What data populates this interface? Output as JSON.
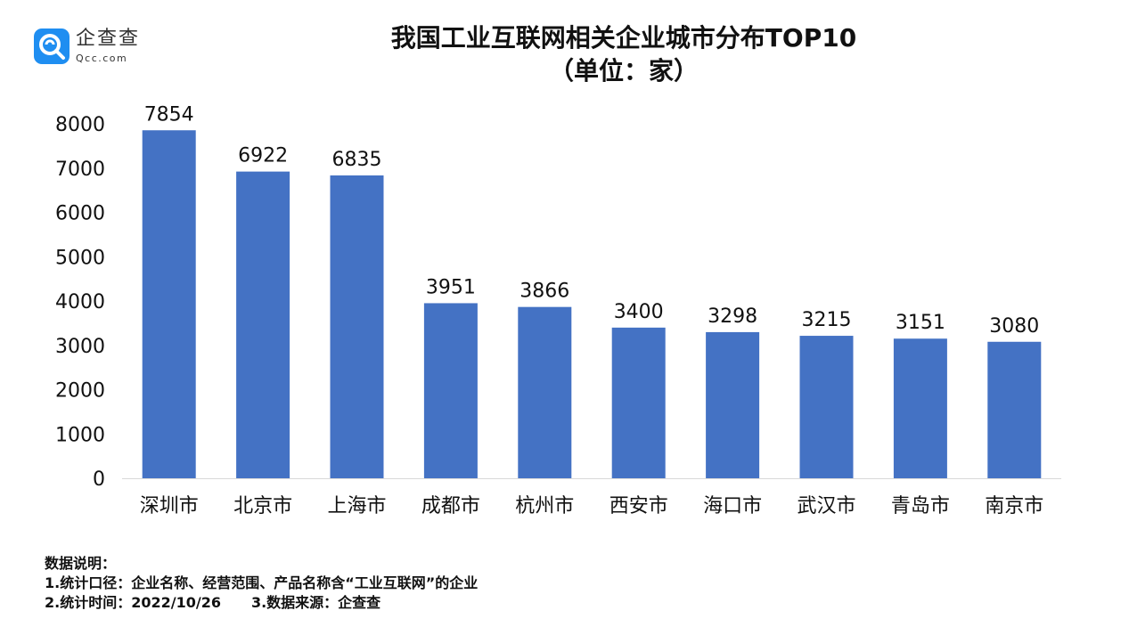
{
  "logo": {
    "name_cn": "企查查",
    "name_en": "Qcc.com",
    "icon": "magnifier-q-icon",
    "color": "#1f8ef1"
  },
  "chart_data": {
    "type": "bar",
    "title": "我国工业互联网相关企业城市分布TOP10",
    "subtitle": "（单位：家）",
    "categories": [
      "深圳市",
      "北京市",
      "上海市",
      "成都市",
      "杭州市",
      "西安市",
      "海口市",
      "武汉市",
      "青岛市",
      "南京市"
    ],
    "values": [
      7854,
      6922,
      6835,
      3951,
      3866,
      3400,
      3298,
      3215,
      3151,
      3080
    ],
    "ylim": [
      0,
      8000
    ],
    "yticks": [
      "0",
      "1000",
      "2000",
      "3000",
      "4000",
      "5000",
      "6000",
      "7000",
      "8000"
    ],
    "grid": false,
    "legend": "none",
    "bar_color": "#4472c4",
    "data_labels": true
  },
  "notes": {
    "heading": "数据说明：",
    "line1": "1.统计口径：企业名称、经营范围、产品名称含“工业互联网”的企业",
    "line2a": "2.统计时间：2022/10/26",
    "line2b": "3.数据来源：企查查"
  }
}
